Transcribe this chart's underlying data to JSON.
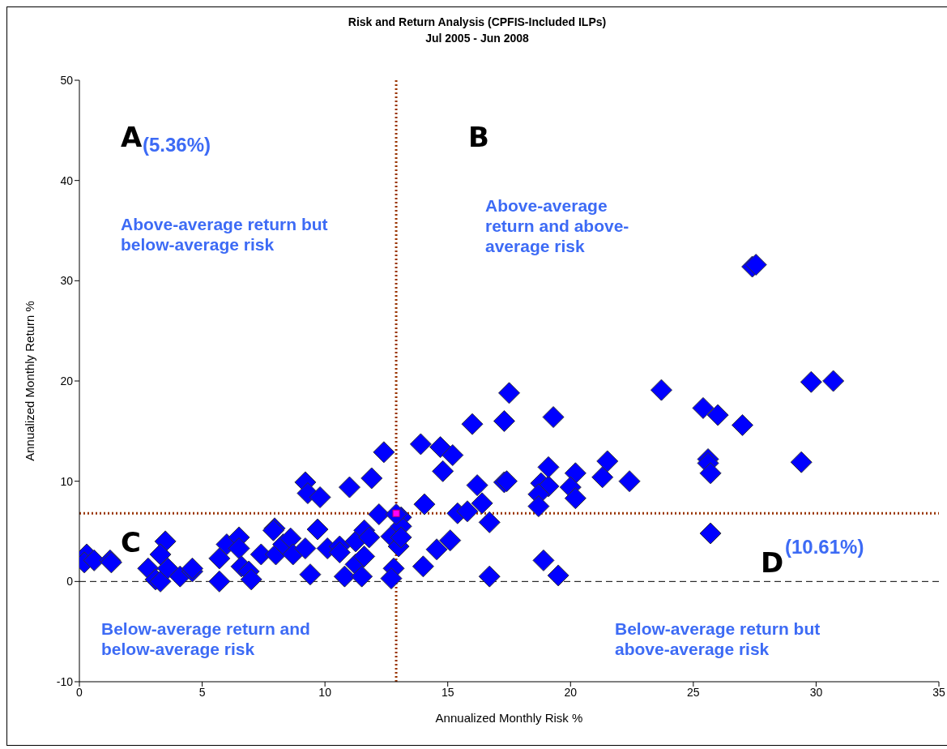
{
  "chart_data": {
    "type": "scatter",
    "title": "Risk and Return Analysis (CPFIS-Included ILPs)",
    "subtitle": "Jul 2005 - Jun 2008",
    "xlabel": "Annualized Monthly Risk %",
    "ylabel": "Annualized Monthly Return %",
    "xlim": [
      0,
      35
    ],
    "xticks": [
      0,
      5,
      10,
      15,
      20,
      25,
      30,
      35
    ],
    "ylim": [
      -10,
      50
    ],
    "yticks": [
      -10,
      0,
      10,
      20,
      30,
      40,
      50
    ],
    "grid": false,
    "legend": false,
    "series": [
      {
        "color": "#0000ff",
        "marker": "diamond",
        "x": [
          0.3,
          0.2,
          0.6,
          1.25,
          1.3,
          3.5,
          3.3,
          2.8,
          3.1,
          3.3,
          3.6,
          4.1,
          4.6,
          4.6,
          5.7,
          5.7,
          6.0,
          6.5,
          6.5,
          6.6,
          6.9,
          7.0,
          7.4,
          8.0,
          7.95,
          7.9,
          8.3,
          8.6,
          8.7,
          9.2,
          9.3,
          9.8,
          9.7,
          9.2,
          9.4,
          10.1,
          10.6,
          10.6,
          10.8,
          11.0,
          11.25,
          11.6,
          11.8,
          11.25,
          11.6,
          11.5,
          11.9,
          12.4,
          12.2,
          12.7,
          13.0,
          12.8,
          12.7,
          13.1,
          13.1,
          13.1,
          13.9,
          14.7,
          15.2,
          14.8,
          16.0,
          17.3,
          17.5,
          19.3,
          14.05,
          15.4,
          15.8,
          16.4,
          16.7,
          16.2,
          17.3,
          17.4,
          18.8,
          19.1,
          18.7,
          18.7,
          19.1,
          20.2,
          20.0,
          20.2,
          21.3,
          21.5,
          15.1,
          14.55,
          14.0,
          16.7,
          18.9,
          19.5,
          27.4,
          27.55,
          23.7,
          29.8,
          30.7,
          25.4,
          26.0,
          27.0,
          22.4,
          25.6,
          25.6,
          25.7,
          29.4,
          25.7,
          12.9
        ],
        "values": [
          2.7,
          1.9,
          2.1,
          2.1,
          1.9,
          4.0,
          2.7,
          1.3,
          0.2,
          0.0,
          1.3,
          0.5,
          1.0,
          1.3,
          0.0,
          2.3,
          3.7,
          4.4,
          3.3,
          1.5,
          1.0,
          0.2,
          2.7,
          2.7,
          5.3,
          5.1,
          3.7,
          4.3,
          2.7,
          9.9,
          8.8,
          8.4,
          5.2,
          3.3,
          0.7,
          3.3,
          3.5,
          2.9,
          0.5,
          9.4,
          4.0,
          5.1,
          4.4,
          1.7,
          2.5,
          0.5,
          10.3,
          12.9,
          6.7,
          4.5,
          3.5,
          1.3,
          0.3,
          6.4,
          5.5,
          4.4,
          13.7,
          13.4,
          12.6,
          11.0,
          15.7,
          16.0,
          18.8,
          16.4,
          7.7,
          6.8,
          7.0,
          7.8,
          5.9,
          9.6,
          9.9,
          10.0,
          9.8,
          9.5,
          8.7,
          7.5,
          11.4,
          10.8,
          9.4,
          8.3,
          10.4,
          12.0,
          4.1,
          3.2,
          1.5,
          0.5,
          2.1,
          0.6,
          31.4,
          31.6,
          19.1,
          19.9,
          20.0,
          17.3,
          16.6,
          15.6,
          10.0,
          12.2,
          11.8,
          10.8,
          11.9,
          4.8,
          6.7
        ]
      },
      {
        "color": "#ff00ff",
        "marker": "square",
        "x": [
          12.9
        ],
        "values": [
          6.8
        ]
      }
    ],
    "ref_lines": [
      {
        "axis": "x",
        "value": 12.9,
        "color": "#993300",
        "line_style": "dotted"
      },
      {
        "axis": "y",
        "value": 6.8,
        "color": "#993300",
        "line_style": "dotted"
      },
      {
        "axis": "y",
        "value": 0,
        "color": "#000000",
        "line_style": "dashed"
      }
    ],
    "annotations": [
      "A",
      "(5.36%)",
      "B",
      "C",
      "D",
      "(10.61%)",
      "Above-average return but below-average risk",
      "Above-average return and above-average risk",
      "Below-average return and below-average risk",
      "Below-average return but above-average risk"
    ]
  }
}
